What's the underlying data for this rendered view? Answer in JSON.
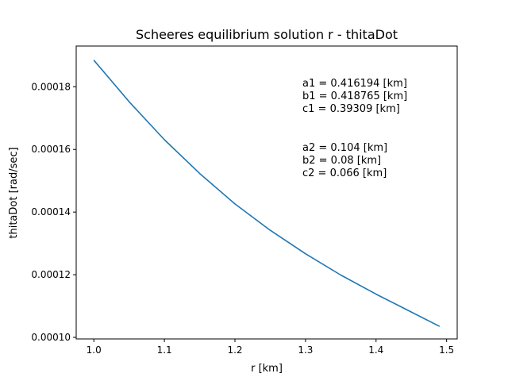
{
  "chart_data": {
    "type": "line",
    "title": "Scheeres equilibrium solution r - thitaDot",
    "xlabel": "r [km]",
    "ylabel": "thitaDot [rad/sec]",
    "xlim": [
      0.975,
      1.515
    ],
    "ylim": [
      9.95e-05,
      0.000193
    ],
    "xticks": [
      1.0,
      1.1,
      1.2,
      1.3,
      1.4,
      1.5
    ],
    "xtick_labels": [
      "1.0",
      "1.1",
      "1.2",
      "1.3",
      "1.4",
      "1.5"
    ],
    "yticks": [
      0.0001,
      0.00012,
      0.00014,
      0.00016,
      0.00018
    ],
    "ytick_labels": [
      "0.00010",
      "0.00012",
      "0.00014",
      "0.00016",
      "0.00018"
    ],
    "grid": false,
    "legend": "none",
    "series": [
      {
        "color": "#1f77b4",
        "x": [
          1.0,
          1.05,
          1.1,
          1.15,
          1.2,
          1.25,
          1.3,
          1.35,
          1.4,
          1.45,
          1.49
        ],
        "y": [
          0.0001885,
          0.0001752,
          0.0001631,
          0.0001523,
          0.0001426,
          0.0001342,
          0.0001267,
          0.0001199,
          0.0001138,
          0.0001081,
          0.0001035
        ]
      }
    ],
    "annotations": [
      [
        "a1 = 0.416194 [km]",
        "b1 = 0.418765 [km]",
        "c1 = 0.39309 [km]"
      ],
      [
        "a2 = 0.104 [km]",
        "b2 = 0.08 [km]",
        "c2 = 0.066 [km]"
      ]
    ]
  }
}
